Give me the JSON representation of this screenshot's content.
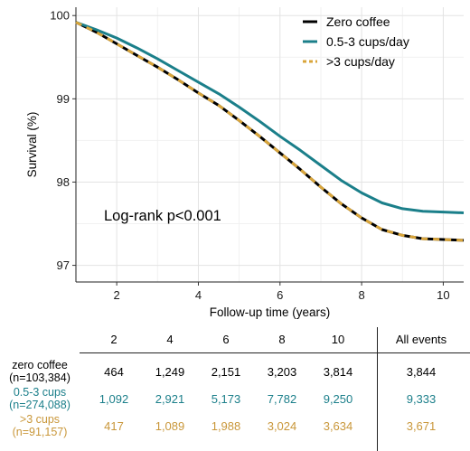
{
  "chart_data": {
    "type": "line",
    "ylabel": "Survival (%)",
    "xlabel": "Follow-up time (years)",
    "xlim": [
      1,
      10.5
    ],
    "ylim": [
      96.8,
      100.1
    ],
    "x_ticks": [
      2,
      4,
      6,
      8,
      10
    ],
    "y_ticks": [
      97,
      98,
      99,
      100
    ],
    "grid": true,
    "legend_position": "top-right",
    "annotation": "Log-rank p<0.001",
    "series": [
      {
        "name": "Zero coffee",
        "color": "#000000",
        "dashed": false,
        "x": [
          1.0,
          1.5,
          2.0,
          2.5,
          3.0,
          3.5,
          4.0,
          4.5,
          5.0,
          5.5,
          6.0,
          6.5,
          7.0,
          7.5,
          8.0,
          8.5,
          9.0,
          9.5,
          10.0,
          10.5
        ],
        "y": [
          99.92,
          99.8,
          99.66,
          99.52,
          99.38,
          99.23,
          99.07,
          98.92,
          98.74,
          98.55,
          98.35,
          98.15,
          97.94,
          97.74,
          97.57,
          97.43,
          97.36,
          97.32,
          97.31,
          97.3
        ]
      },
      {
        "name": "0.5-3 cups/day",
        "color": "#1b7f8a",
        "dashed": false,
        "x": [
          1.0,
          1.5,
          2.0,
          2.5,
          3.0,
          3.5,
          4.0,
          4.5,
          5.0,
          5.5,
          6.0,
          6.5,
          7.0,
          7.5,
          8.0,
          8.5,
          9.0,
          9.5,
          10.0,
          10.5
        ],
        "y": [
          99.92,
          99.83,
          99.73,
          99.61,
          99.48,
          99.34,
          99.2,
          99.06,
          98.9,
          98.73,
          98.55,
          98.38,
          98.2,
          98.02,
          97.87,
          97.75,
          97.68,
          97.65,
          97.64,
          97.63
        ]
      },
      {
        "name": ">3 cups/day",
        "color": "#d9a53a",
        "dashed": true,
        "x": [
          1.0,
          1.5,
          2.0,
          2.5,
          3.0,
          3.5,
          4.0,
          4.5,
          5.0,
          5.5,
          6.0,
          6.5,
          7.0,
          7.5,
          8.0,
          8.5,
          9.0,
          9.5,
          10.0,
          10.5
        ],
        "y": [
          99.92,
          99.8,
          99.66,
          99.52,
          99.38,
          99.23,
          99.07,
          98.92,
          98.74,
          98.55,
          98.35,
          98.15,
          97.94,
          97.74,
          97.57,
          97.43,
          97.36,
          97.32,
          97.31,
          97.3
        ]
      }
    ]
  },
  "risk_table": {
    "columns": [
      "2",
      "4",
      "6",
      "8",
      "10",
      "All events"
    ],
    "rows": [
      {
        "group_line1": "zero coffee",
        "group_line2": "(n=103,384)",
        "color": "#000000",
        "values": [
          "464",
          "1,249",
          "2,151",
          "3,203",
          "3,814",
          "3,844"
        ]
      },
      {
        "group_line1": "0.5-3 cups",
        "group_line2": "(n=274,088)",
        "color": "#1b7f8a",
        "values": [
          "1,092",
          "2,921",
          "5,173",
          "7,782",
          "9,250",
          "9,333"
        ]
      },
      {
        "group_line1": ">3 cups",
        "group_line2": "(n=91,157)",
        "color": "#c9973a",
        "values": [
          "417",
          "1,089",
          "1,988",
          "3,024",
          "3,634",
          "3,671"
        ]
      }
    ]
  }
}
